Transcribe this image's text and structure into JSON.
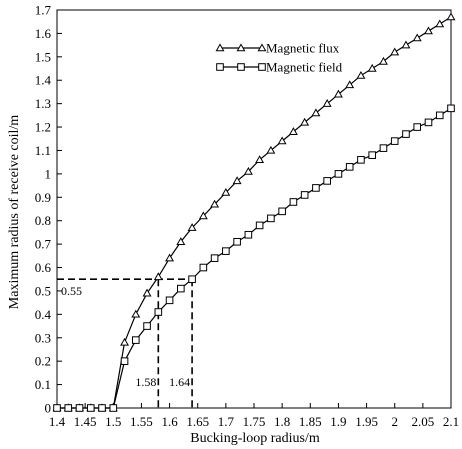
{
  "chart_data": {
    "type": "line",
    "title": "",
    "xlabel": "Bucking-loop radius/m",
    "ylabel": "Maximum radius of receive coil/m",
    "xlim": [
      1.4,
      2.1
    ],
    "ylim": [
      0,
      1.7
    ],
    "xticks": [
      "1.4",
      "1.45",
      "1.5",
      "1.55",
      "1.6",
      "1.65",
      "1.7",
      "1.75",
      "1.8",
      "1.85",
      "1.9",
      "1.95",
      "2",
      "2.05",
      "2.1"
    ],
    "yticks": [
      "0",
      "0.1",
      "0.2",
      "0.3",
      "0.4",
      "0.5",
      "0.6",
      "0.7",
      "0.8",
      "0.9",
      "1",
      "1.1",
      "1.2",
      "1.3",
      "1.4",
      "1.5",
      "1.6",
      "1.7"
    ],
    "grid": false,
    "legend_position": "top-right",
    "series": [
      {
        "name": "Magnetic flux",
        "marker": "triangle",
        "x": [
          1.4,
          1.42,
          1.44,
          1.46,
          1.48,
          1.5,
          1.52,
          1.54,
          1.56,
          1.58,
          1.6,
          1.62,
          1.64,
          1.66,
          1.68,
          1.7,
          1.72,
          1.74,
          1.76,
          1.78,
          1.8,
          1.82,
          1.84,
          1.86,
          1.88,
          1.9,
          1.92,
          1.94,
          1.96,
          1.98,
          2.0,
          2.02,
          2.04,
          2.06,
          2.08,
          2.1
        ],
        "y": [
          0,
          0,
          0,
          0,
          0,
          0,
          0.28,
          0.4,
          0.49,
          0.56,
          0.64,
          0.71,
          0.77,
          0.82,
          0.87,
          0.92,
          0.97,
          1.01,
          1.06,
          1.1,
          1.14,
          1.18,
          1.22,
          1.26,
          1.3,
          1.34,
          1.38,
          1.42,
          1.45,
          1.48,
          1.52,
          1.55,
          1.58,
          1.61,
          1.64,
          1.67
        ]
      },
      {
        "name": "Magnetic field",
        "marker": "square",
        "x": [
          1.4,
          1.42,
          1.44,
          1.46,
          1.48,
          1.5,
          1.52,
          1.54,
          1.56,
          1.58,
          1.6,
          1.62,
          1.64,
          1.66,
          1.68,
          1.7,
          1.72,
          1.74,
          1.76,
          1.78,
          1.8,
          1.82,
          1.84,
          1.86,
          1.88,
          1.9,
          1.92,
          1.94,
          1.96,
          1.98,
          2.0,
          2.02,
          2.04,
          2.06,
          2.08,
          2.1
        ],
        "y": [
          0,
          0,
          0,
          0,
          0,
          0,
          0.2,
          0.29,
          0.35,
          0.41,
          0.46,
          0.51,
          0.55,
          0.6,
          0.64,
          0.67,
          0.71,
          0.74,
          0.78,
          0.81,
          0.84,
          0.88,
          0.91,
          0.94,
          0.97,
          1.0,
          1.03,
          1.06,
          1.08,
          1.11,
          1.14,
          1.17,
          1.2,
          1.22,
          1.25,
          1.28
        ]
      }
    ],
    "annotations": {
      "y_value": 0.55,
      "y_label": "0.55",
      "x_values": [
        1.58,
        1.64
      ],
      "x_labels": [
        "1.58",
        "1.64"
      ]
    }
  }
}
